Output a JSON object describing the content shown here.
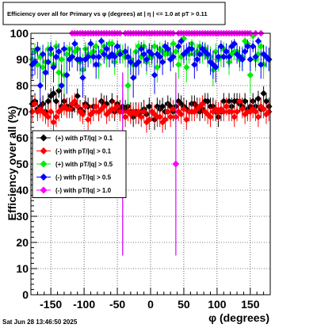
{
  "title": "Efficiency over all for Primary vs φ (degrees) at | η | <= 1.0 at pT > 0.11",
  "timestamp": "Sat Jun 28 13:46:50 2025",
  "chart_data": {
    "type": "scatter",
    "xlabel": "φ (degrees)",
    "ylabel": "Efficiency over all (%)",
    "xlim": [
      -180,
      180
    ],
    "ylim": [
      0,
      100
    ],
    "x_ticks": [
      -150,
      -100,
      -50,
      0,
      50,
      100,
      150
    ],
    "y_ticks": [
      0,
      10,
      20,
      30,
      40,
      50,
      60,
      70,
      80,
      90,
      100
    ],
    "grid": true,
    "legend_position": "left-center",
    "bin_width": 4,
    "series": [
      {
        "name": "(+) with pT/|q| > 0.1",
        "color": "#000000",
        "marker": "diamond",
        "values": [
          73,
          74,
          71,
          72,
          73,
          70,
          74,
          76,
          77,
          74,
          78,
          72,
          74,
          72,
          72,
          71,
          73,
          76,
          71,
          70,
          73,
          72,
          69,
          72,
          72,
          70,
          74,
          73,
          73,
          70,
          74,
          70,
          73,
          71,
          72,
          71,
          72,
          70,
          68,
          70,
          69,
          70,
          71,
          69,
          72,
          70,
          67,
          72,
          71,
          72,
          70,
          73,
          72,
          70,
          72,
          74,
          73,
          72,
          71,
          70,
          73,
          73,
          72,
          70,
          71,
          74,
          74,
          72,
          72,
          70,
          68,
          70,
          74,
          72,
          74,
          72,
          74,
          74,
          73,
          72,
          74,
          71,
          72,
          74,
          72,
          75,
          71,
          77,
          74,
          72
        ]
      },
      {
        "name": "(-) with pT/|q| > 0.1",
        "color": "#ff0000",
        "marker": "diamond",
        "values": [
          70,
          73,
          70,
          71,
          70,
          69,
          68,
          70,
          66,
          68,
          70,
          71,
          72,
          71,
          71,
          73,
          74,
          72,
          70,
          69,
          72,
          67,
          69,
          70,
          72,
          70,
          71,
          72,
          69,
          70,
          71,
          71,
          72,
          70,
          70,
          68,
          70,
          69,
          70,
          69,
          70,
          68,
          70,
          66,
          67,
          70,
          69,
          68,
          68,
          66,
          67,
          70,
          68,
          71,
          68,
          70,
          69,
          71,
          67,
          70,
          70,
          70,
          71,
          72,
          73,
          70,
          69,
          68,
          70,
          71,
          70,
          71,
          70,
          72,
          70,
          70,
          68,
          70,
          74,
          71,
          69,
          70,
          70,
          71,
          70,
          68,
          72,
          71,
          69,
          70
        ]
      },
      {
        "name": "(+) with pT/|q| > 0.5",
        "color": "#00ee00",
        "marker": "diamond",
        "values": [
          90,
          93,
          88,
          91,
          87,
          89,
          94,
          92,
          88,
          95,
          85,
          90,
          84,
          92,
          94,
          91,
          93,
          94,
          89,
          86,
          94,
          92,
          92,
          93,
          95,
          88,
          93,
          95,
          91,
          96,
          96,
          89,
          92,
          93,
          92,
          91,
          80,
          90,
          88,
          93,
          95,
          91,
          95,
          89,
          91,
          91,
          95,
          87,
          94,
          93,
          92,
          93,
          92,
          96,
          93,
          88,
          91,
          98,
          87,
          92,
          96,
          92,
          93,
          95,
          92,
          94,
          91,
          91,
          86,
          93,
          90,
          91,
          94,
          93,
          89,
          92,
          93,
          93,
          90,
          91,
          97,
          96,
          84,
          99,
          90,
          92,
          95,
          88,
          91,
          90
        ]
      },
      {
        "name": "(-) with pT/|q| > 0.5",
        "color": "#0000ff",
        "marker": "diamond",
        "values": [
          88,
          89,
          94,
          80,
          92,
          85,
          89,
          94,
          87,
          91,
          93,
          80,
          94,
          84,
          90,
          91,
          96,
          90,
          90,
          83,
          90,
          91,
          96,
          91,
          88,
          91,
          97,
          92,
          94,
          91,
          92,
          91,
          95,
          92,
          50,
          93,
          91,
          89,
          83,
          88,
          89,
          94,
          92,
          90,
          93,
          92,
          84,
          92,
          91,
          89,
          95,
          94,
          90,
          91,
          50,
          95,
          97,
          92,
          93,
          94,
          94,
          88,
          90,
          92,
          94,
          93,
          92,
          89,
          88,
          87,
          91,
          95,
          91,
          93,
          91,
          95,
          96,
          92,
          91,
          90,
          93,
          95,
          90,
          95,
          91,
          97,
          88,
          92,
          91,
          90
        ]
      },
      {
        "name": "(-) with pT/|q| > 1.0",
        "color": "#ff00ff",
        "marker": "diamond",
        "values": [
          null,
          null,
          null,
          null,
          null,
          null,
          null,
          null,
          null,
          null,
          null,
          null,
          null,
          null,
          null,
          100,
          100,
          100,
          100,
          100,
          100,
          100,
          100,
          100,
          100,
          100,
          100,
          100,
          100,
          100,
          100,
          100,
          100,
          100,
          50,
          100,
          100,
          100,
          100,
          100,
          100,
          100,
          100,
          100,
          100,
          100,
          100,
          100,
          100,
          100,
          100,
          100,
          100,
          100,
          50,
          100,
          100,
          100,
          100,
          100,
          100,
          100,
          100,
          100,
          100,
          100,
          100,
          100,
          100,
          100,
          100,
          100,
          100,
          100,
          100,
          100,
          100,
          100,
          100,
          100,
          100,
          100,
          100,
          null,
          100,
          null,
          100,
          null,
          null,
          null
        ]
      }
    ]
  }
}
